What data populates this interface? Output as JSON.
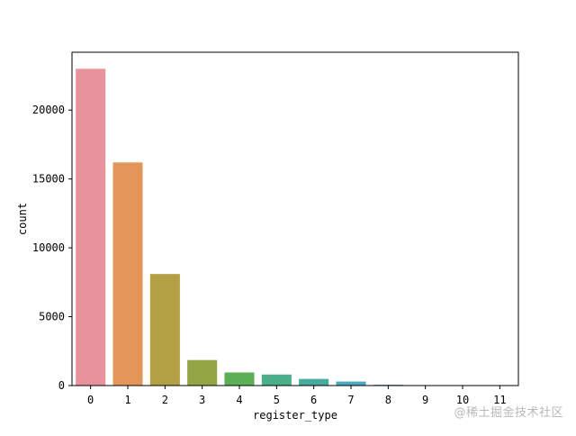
{
  "chart_data": {
    "type": "bar",
    "title": "",
    "xlabel": "register_type",
    "ylabel": "count",
    "categories": [
      "0",
      "1",
      "2",
      "3",
      "4",
      "5",
      "6",
      "7",
      "8",
      "9",
      "10",
      "11"
    ],
    "values": [
      23000,
      16200,
      8100,
      1850,
      950,
      800,
      480,
      290,
      60,
      15,
      10,
      8
    ],
    "ylim": [
      0,
      24200
    ],
    "yticks": [
      0,
      5000,
      10000,
      15000,
      20000
    ],
    "colors": [
      "#e8929e",
      "#e39657",
      "#b3a044",
      "#94a545",
      "#5daf55",
      "#4bb08a",
      "#47ab9e",
      "#4aa9bb",
      "#6b9fd6",
      "#ad93e0",
      "#d07fe0",
      "#e58fcd"
    ],
    "grid": false,
    "legend": "none"
  },
  "watermark": "@稀土掘金技术社区"
}
